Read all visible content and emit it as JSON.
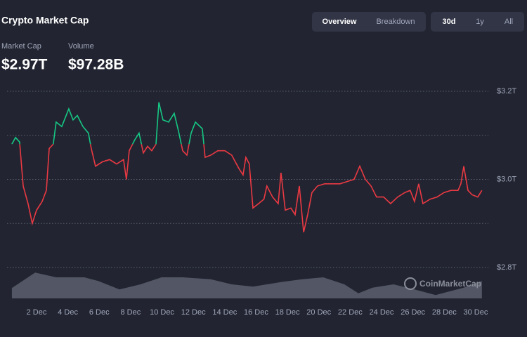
{
  "header": {
    "title": "Crypto Market Cap"
  },
  "tabs": [
    {
      "label": "Overview",
      "active": true
    },
    {
      "label": "Breakdown",
      "active": false
    }
  ],
  "ranges": [
    {
      "label": "30d",
      "active": true
    },
    {
      "label": "1y",
      "active": false
    },
    {
      "label": "All",
      "active": false
    }
  ],
  "stats": [
    {
      "label": "Market Cap",
      "value": "$2.97T"
    },
    {
      "label": "Volume",
      "value": "$97.28B"
    }
  ],
  "watermark": "CoinMarketCap",
  "chart_data": {
    "type": "line",
    "x": [
      0.43,
      0.66,
      0.92,
      1.15,
      1.46,
      1.73,
      2.0,
      2.36,
      2.63,
      2.81,
      3.07,
      3.25,
      3.61,
      4.06,
      4.33,
      4.6,
      4.96,
      5.31,
      5.49,
      5.76,
      6.21,
      6.66,
      7.11,
      7.55,
      7.73,
      7.91,
      8.27,
      8.54,
      8.81,
      9.08,
      9.35,
      9.62,
      9.8,
      10.06,
      10.42,
      10.78,
      11.05,
      11.32,
      11.59,
      11.86,
      12.13,
      12.57,
      12.75,
      13.11,
      13.56,
      14.01,
      14.45,
      14.9,
      15.17,
      15.35,
      15.57,
      15.8,
      16.16,
      16.5,
      16.69,
      17.05,
      17.41,
      17.59,
      17.86,
      18.22,
      18.49,
      18.76,
      19.03,
      19.29,
      19.56,
      19.92,
      20.37,
      20.91,
      21.35,
      21.8,
      22.25,
      22.61,
      22.97,
      23.33,
      23.68,
      24.13,
      24.58,
      25.03,
      25.48,
      25.83,
      26.1,
      26.37,
      26.64,
      27.09,
      27.54,
      27.98,
      28.43,
      28.88,
      29.06,
      29.24,
      29.51,
      29.78,
      30.14,
      30.4
    ],
    "values": [
      3.08,
      3.095,
      3.085,
      2.985,
      2.945,
      2.9,
      2.93,
      2.95,
      2.975,
      3.07,
      3.08,
      3.13,
      3.12,
      3.16,
      3.135,
      3.145,
      3.12,
      3.105,
      3.07,
      3.03,
      3.04,
      3.045,
      3.035,
      3.045,
      3.0,
      3.065,
      3.09,
      3.105,
      3.06,
      3.075,
      3.065,
      3.08,
      3.175,
      3.135,
      3.13,
      3.15,
      3.11,
      3.065,
      3.055,
      3.105,
      3.13,
      3.115,
      3.05,
      3.055,
      3.065,
      3.065,
      3.055,
      3.025,
      3.01,
      3.05,
      3.035,
      2.935,
      2.945,
      2.955,
      2.985,
      2.96,
      2.945,
      3.015,
      2.93,
      2.935,
      2.92,
      2.985,
      2.88,
      2.92,
      2.97,
      2.985,
      2.99,
      2.99,
      2.99,
      2.995,
      3.0,
      3.03,
      3.0,
      2.985,
      2.96,
      2.96,
      2.945,
      2.96,
      2.97,
      2.975,
      2.95,
      2.99,
      2.945,
      2.955,
      2.96,
      2.97,
      2.975,
      2.975,
      2.99,
      3.03,
      2.975,
      2.965,
      2.96,
      2.975
    ],
    "color_up": "#16c784",
    "color_down": "#ea3943",
    "xlim": [
      0.12,
      30.81
    ],
    "ylim": [
      2.8,
      3.2
    ],
    "yticks": [
      {
        "value": 2.8,
        "label": "$2.8T"
      },
      {
        "value": 3.0,
        "label": "$3.0T"
      },
      {
        "value": 3.2,
        "label": "$3.2T"
      }
    ],
    "grid_lines": [
      2.8,
      2.9,
      3.0,
      3.1,
      3.2
    ],
    "grid": true,
    "xticks": [
      {
        "value": 2,
        "label": "2 Dec"
      },
      {
        "value": 4,
        "label": "4 Dec"
      },
      {
        "value": 6,
        "label": "6 Dec"
      },
      {
        "value": 8,
        "label": "8 Dec"
      },
      {
        "value": 10,
        "label": "10 Dec"
      },
      {
        "value": 12,
        "label": "12 Dec"
      },
      {
        "value": 14,
        "label": "14 Dec"
      },
      {
        "value": 16,
        "label": "16 Dec"
      },
      {
        "value": 18,
        "label": "18 Dec"
      },
      {
        "value": 20,
        "label": "20 Dec"
      },
      {
        "value": 22,
        "label": "22 Dec"
      },
      {
        "value": 24,
        "label": "24 Dec"
      },
      {
        "value": 26,
        "label": "26 Dec"
      },
      {
        "value": 28,
        "label": "28 Dec"
      },
      {
        "value": 30,
        "label": "30 Dec"
      }
    ],
    "volume": {
      "x": [
        0.43,
        1.91,
        3.25,
        5.05,
        5.94,
        7.29,
        8.63,
        9.97,
        11.32,
        13.11,
        14.45,
        15.8,
        17.59,
        18.94,
        20.28,
        21.63,
        22.52,
        23.42,
        24.76,
        26.1,
        27.45,
        29.24,
        30.4
      ],
      "values": [
        37,
        92,
        75,
        75,
        62,
        32,
        50,
        75,
        75,
        68,
        50,
        42,
        58,
        68,
        75,
        50,
        18,
        38,
        50,
        32,
        12,
        38,
        62
      ],
      "y2lim": [
        0,
        100
      ],
      "color": "#5c5f6d"
    }
  }
}
